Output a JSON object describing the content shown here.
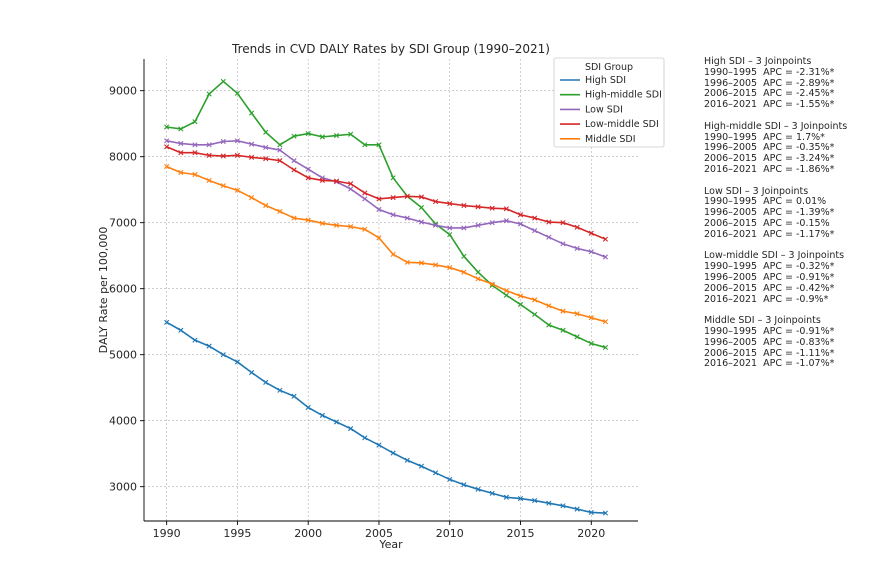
{
  "chart_data": {
    "type": "line",
    "title": "Trends in CVD DALY Rates by SDI Group (1990–2021)",
    "xlabel": "Year",
    "ylabel": "DALY Rate per 100,000",
    "xlim": [
      1988.4,
      2023.3
    ],
    "ylim": [
      2480,
      9480
    ],
    "xticks": [
      1990,
      1995,
      2000,
      2005,
      2010,
      2015,
      2020
    ],
    "yticks": [
      3000,
      4000,
      5000,
      6000,
      7000,
      8000,
      9000
    ],
    "grid": true,
    "legend": {
      "title": "SDI Group",
      "placement": "top-right"
    },
    "x": [
      1990,
      1991,
      1992,
      1993,
      1994,
      1995,
      1996,
      1997,
      1998,
      1999,
      2000,
      2001,
      2002,
      2003,
      2004,
      2005,
      2006,
      2007,
      2008,
      2009,
      2010,
      2011,
      2012,
      2013,
      2014,
      2015,
      2016,
      2017,
      2018,
      2019,
      2020,
      2021
    ],
    "series": [
      {
        "name": "High SDI",
        "color": "#1f77b4",
        "values": [
          5490,
          5370,
          5220,
          5130,
          5000,
          4890,
          4730,
          4580,
          4460,
          4370,
          4200,
          4080,
          3980,
          3880,
          3740,
          3630,
          3510,
          3400,
          3310,
          3210,
          3110,
          3030,
          2960,
          2900,
          2840,
          2820,
          2790,
          2750,
          2710,
          2660,
          2610,
          2600
        ]
      },
      {
        "name": "High-middle SDI",
        "color": "#2ca02c",
        "values": [
          8450,
          8420,
          8530,
          8950,
          9140,
          8960,
          8660,
          8370,
          8180,
          8310,
          8350,
          8300,
          8320,
          8340,
          8180,
          8180,
          7680,
          7400,
          7230,
          6980,
          6820,
          6490,
          6250,
          6050,
          5900,
          5760,
          5610,
          5450,
          5370,
          5270,
          5170,
          5110
        ]
      },
      {
        "name": "Low SDI",
        "color": "#9467bd",
        "values": [
          8240,
          8200,
          8180,
          8180,
          8230,
          8240,
          8190,
          8140,
          8100,
          7940,
          7810,
          7680,
          7620,
          7510,
          7360,
          7200,
          7120,
          7070,
          7010,
          6960,
          6920,
          6920,
          6960,
          7000,
          7030,
          6980,
          6880,
          6780,
          6680,
          6610,
          6560,
          6480
        ]
      },
      {
        "name": "Low-middle SDI",
        "color": "#d62728",
        "values": [
          8150,
          8060,
          8060,
          8020,
          8010,
          8020,
          7990,
          7970,
          7940,
          7800,
          7680,
          7640,
          7630,
          7590,
          7450,
          7360,
          7380,
          7400,
          7390,
          7320,
          7290,
          7260,
          7240,
          7220,
          7210,
          7120,
          7070,
          7010,
          7000,
          6930,
          6840,
          6750
        ]
      },
      {
        "name": "Middle SDI",
        "color": "#ff7f0e",
        "values": [
          7850,
          7760,
          7730,
          7640,
          7560,
          7490,
          7380,
          7260,
          7170,
          7070,
          7040,
          6990,
          6960,
          6940,
          6900,
          6770,
          6520,
          6400,
          6390,
          6360,
          6320,
          6250,
          6150,
          6070,
          5970,
          5890,
          5830,
          5740,
          5660,
          5620,
          5560,
          5500
        ]
      }
    ]
  },
  "annotations": [
    {
      "heading": "High SDI – 3 Joinpoints",
      "lines": [
        "1990–1995  APC = -2.31%*",
        "1996–2005  APC = -2.89%*",
        "2006–2015  APC = -2.45%*",
        "2016–2021  APC = -1.55%*"
      ]
    },
    {
      "heading": "High-middle SDI – 3 Joinpoints",
      "lines": [
        "1990–1995  APC = 1.7%*",
        "1996–2005  APC = -0.35%*",
        "2006–2015  APC = -3.24%*",
        "2016–2021  APC = -1.86%*"
      ]
    },
    {
      "heading": "Low SDI – 3 Joinpoints",
      "lines": [
        "1990–1995  APC = 0.01%",
        "1996–2005  APC = -1.39%*",
        "2006–2015  APC = -0.15%",
        "2016–2021  APC = -1.17%*"
      ]
    },
    {
      "heading": "Low-middle SDI – 3 Joinpoints",
      "lines": [
        "1990–1995  APC = -0.32%*",
        "1996–2005  APC = -0.91%*",
        "2006–2015  APC = -0.42%*",
        "2016–2021  APC = -0.9%*"
      ]
    },
    {
      "heading": "Middle SDI – 3 Joinpoints",
      "lines": [
        "1990–1995  APC = -0.91%*",
        "1996–2005  APC = -0.83%*",
        "2006–2015  APC = -1.11%*",
        "2016–2021  APC = -1.07%*"
      ]
    }
  ]
}
